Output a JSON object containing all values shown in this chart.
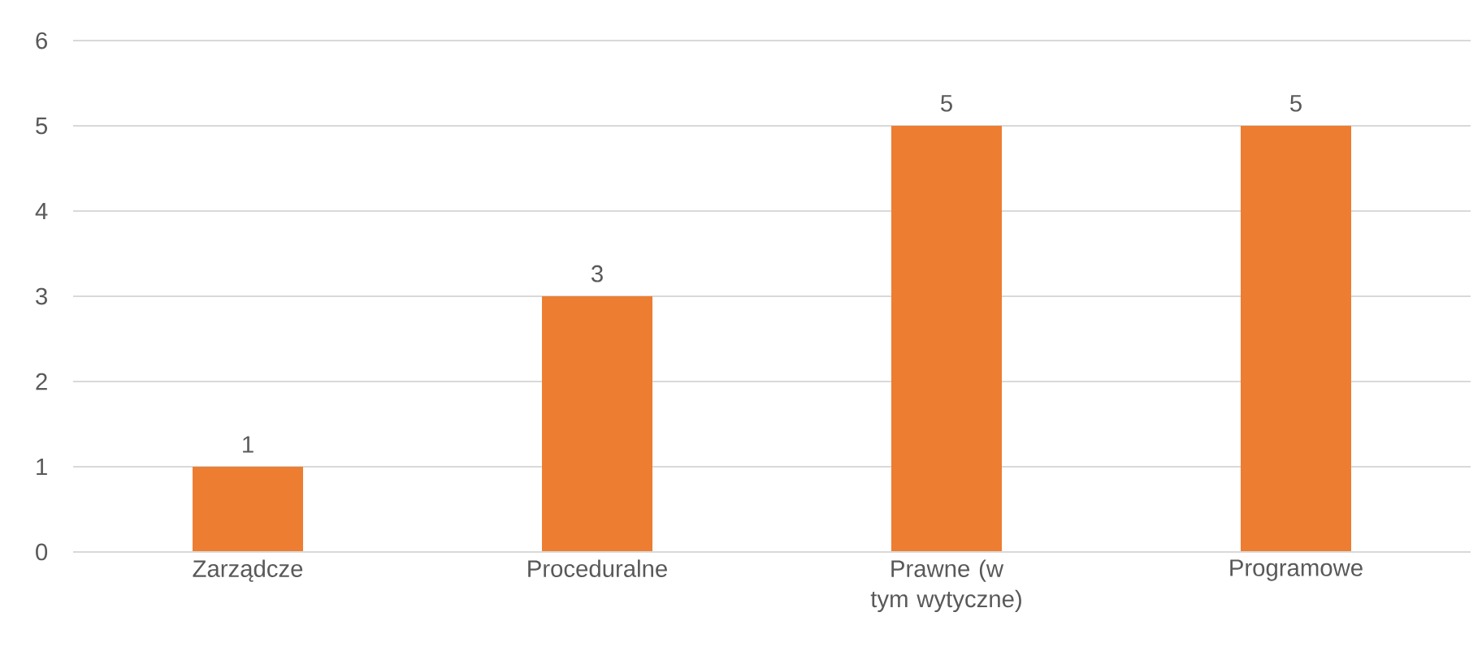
{
  "chart_data": {
    "type": "bar",
    "categories": [
      "Zarządcze",
      "Proceduralne",
      "Prawne (w tym wytyczne)",
      "Programowe"
    ],
    "values": [
      1,
      3,
      5,
      5
    ],
    "color": "#ed7d31",
    "ylim": [
      0,
      6
    ],
    "yticks": [
      0,
      1,
      2,
      3,
      4,
      5,
      6
    ],
    "grid": "y",
    "data_labels": true
  }
}
